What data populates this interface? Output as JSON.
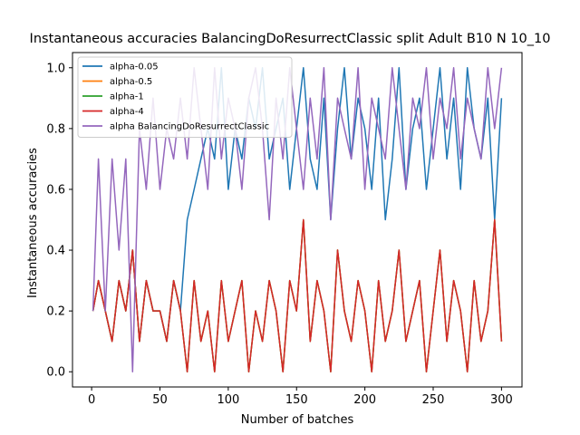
{
  "chart_data": {
    "type": "line",
    "title": "Instantaneous accuracies BalancingDoResurrectClassic split Adult B10 N 10_10",
    "xlabel": "Number of batches",
    "ylabel": "Instantaneous accuracies",
    "xlim": [
      -14,
      315
    ],
    "ylim": [
      -0.05,
      1.05
    ],
    "xticks": [
      0,
      50,
      100,
      150,
      200,
      250,
      300
    ],
    "yticks": [
      0.0,
      0.2,
      0.4,
      0.6,
      0.8,
      1.0
    ],
    "xtick_labels": [
      "0",
      "50",
      "100",
      "150",
      "200",
      "250",
      "300"
    ],
    "ytick_labels": [
      "0.0",
      "0.2",
      "0.4",
      "0.6",
      "0.8",
      "1.0"
    ],
    "legend_position": "upper-left",
    "series": [
      {
        "name": "alpha-0.05",
        "color": "#1f77b4",
        "x": [
          1,
          5,
          10,
          15,
          20,
          25,
          30,
          35,
          40,
          45,
          50,
          55,
          60,
          65,
          70,
          75,
          80,
          85,
          90,
          95,
          100,
          105,
          110,
          115,
          120,
          125,
          130,
          135,
          140,
          145,
          150,
          155,
          160,
          165,
          170,
          175,
          180,
          185,
          190,
          195,
          200,
          205,
          210,
          215,
          220,
          225,
          230,
          235,
          240,
          245,
          250,
          255,
          260,
          265,
          270,
          275,
          280,
          285,
          290,
          295,
          300
        ],
        "y": [
          0.2,
          0.3,
          0.2,
          0.1,
          0.3,
          0.2,
          0.4,
          0.1,
          0.3,
          0.2,
          0.2,
          0.1,
          0.3,
          0.2,
          0.5,
          0.6,
          0.7,
          0.8,
          0.7,
          1.0,
          0.6,
          0.8,
          0.7,
          0.9,
          0.8,
          1.0,
          0.7,
          0.8,
          0.9,
          0.6,
          0.8,
          1.0,
          0.7,
          0.6,
          0.9,
          0.5,
          0.8,
          1.0,
          0.7,
          0.9,
          0.8,
          0.6,
          0.9,
          0.5,
          0.7,
          1.0,
          0.6,
          0.8,
          0.9,
          0.6,
          0.8,
          1.0,
          0.7,
          0.9,
          0.6,
          1.0,
          0.8,
          0.7,
          0.9,
          0.5,
          0.9
        ]
      },
      {
        "name": "alpha-0.5",
        "color": "#ff7f0e",
        "x": [
          1,
          5,
          10,
          15,
          20,
          25,
          30,
          35,
          40,
          45,
          50,
          55,
          60,
          65,
          70,
          75,
          80,
          85,
          90,
          95,
          100,
          105,
          110,
          115,
          120,
          125,
          130,
          135,
          140,
          145,
          150,
          155,
          160,
          165,
          170,
          175,
          180,
          185,
          190,
          195,
          200,
          205,
          210,
          215,
          220,
          225,
          230,
          235,
          240,
          245,
          250,
          255,
          260,
          265,
          270,
          275,
          280,
          285,
          290,
          295,
          300
        ],
        "y": [
          0.2,
          0.3,
          0.2,
          0.1,
          0.3,
          0.2,
          0.4,
          0.1,
          0.3,
          0.2,
          0.2,
          0.1,
          0.3,
          0.2,
          0.0,
          0.3,
          0.1,
          0.2,
          0.0,
          0.3,
          0.1,
          0.2,
          0.3,
          0.0,
          0.2,
          0.1,
          0.3,
          0.2,
          0.0,
          0.3,
          0.2,
          0.5,
          0.1,
          0.3,
          0.2,
          0.0,
          0.4,
          0.2,
          0.1,
          0.3,
          0.2,
          0.0,
          0.3,
          0.1,
          0.2,
          0.4,
          0.1,
          0.2,
          0.3,
          0.0,
          0.2,
          0.4,
          0.1,
          0.3,
          0.2,
          0.0,
          0.3,
          0.1,
          0.2,
          0.5,
          0.1
        ]
      },
      {
        "name": "alpha-1",
        "color": "#2ca02c",
        "x": [
          1,
          5,
          10,
          15,
          20,
          25,
          30,
          35,
          40,
          45,
          50,
          55,
          60,
          65,
          70,
          75,
          80,
          85,
          90,
          95,
          100,
          105,
          110,
          115,
          120,
          125,
          130,
          135,
          140,
          145,
          150,
          155,
          160,
          165,
          170,
          175,
          180,
          185,
          190,
          195,
          200,
          205,
          210,
          215,
          220,
          225,
          230,
          235,
          240,
          245,
          250,
          255,
          260,
          265,
          270,
          275,
          280,
          285,
          290,
          295,
          300
        ],
        "y": [
          0.2,
          0.3,
          0.2,
          0.1,
          0.3,
          0.2,
          0.4,
          0.1,
          0.3,
          0.2,
          0.2,
          0.1,
          0.3,
          0.2,
          0.0,
          0.3,
          0.1,
          0.2,
          0.0,
          0.3,
          0.1,
          0.2,
          0.3,
          0.0,
          0.2,
          0.1,
          0.3,
          0.2,
          0.0,
          0.3,
          0.2,
          0.5,
          0.1,
          0.3,
          0.2,
          0.0,
          0.4,
          0.2,
          0.1,
          0.3,
          0.2,
          0.0,
          0.3,
          0.1,
          0.2,
          0.4,
          0.1,
          0.2,
          0.3,
          0.0,
          0.2,
          0.4,
          0.1,
          0.3,
          0.2,
          0.0,
          0.3,
          0.1,
          0.2,
          0.5,
          0.1
        ]
      },
      {
        "name": "alpha-4",
        "color": "#d62728",
        "x": [
          1,
          5,
          10,
          15,
          20,
          25,
          30,
          35,
          40,
          45,
          50,
          55,
          60,
          65,
          70,
          75,
          80,
          85,
          90,
          95,
          100,
          105,
          110,
          115,
          120,
          125,
          130,
          135,
          140,
          145,
          150,
          155,
          160,
          165,
          170,
          175,
          180,
          185,
          190,
          195,
          200,
          205,
          210,
          215,
          220,
          225,
          230,
          235,
          240,
          245,
          250,
          255,
          260,
          265,
          270,
          275,
          280,
          285,
          290,
          295,
          300
        ],
        "y": [
          0.2,
          0.3,
          0.2,
          0.1,
          0.3,
          0.2,
          0.4,
          0.1,
          0.3,
          0.2,
          0.2,
          0.1,
          0.3,
          0.2,
          0.0,
          0.3,
          0.1,
          0.2,
          0.0,
          0.3,
          0.1,
          0.2,
          0.3,
          0.0,
          0.2,
          0.1,
          0.3,
          0.2,
          0.0,
          0.3,
          0.2,
          0.5,
          0.1,
          0.3,
          0.2,
          0.0,
          0.4,
          0.2,
          0.1,
          0.3,
          0.2,
          0.0,
          0.3,
          0.1,
          0.2,
          0.4,
          0.1,
          0.2,
          0.3,
          0.0,
          0.2,
          0.4,
          0.1,
          0.3,
          0.2,
          0.0,
          0.3,
          0.1,
          0.2,
          0.5,
          0.1
        ]
      },
      {
        "name": "alpha BalancingDoResurrectClassic",
        "color": "#9467bd",
        "x": [
          1,
          5,
          10,
          15,
          20,
          25,
          30,
          35,
          40,
          45,
          50,
          55,
          60,
          65,
          70,
          75,
          80,
          85,
          90,
          95,
          100,
          105,
          110,
          115,
          120,
          125,
          130,
          135,
          140,
          145,
          150,
          155,
          160,
          165,
          170,
          175,
          180,
          185,
          190,
          195,
          200,
          205,
          210,
          215,
          220,
          225,
          230,
          235,
          240,
          245,
          250,
          255,
          260,
          265,
          270,
          275,
          280,
          285,
          290,
          295,
          300
        ],
        "y": [
          0.2,
          0.7,
          0.2,
          0.7,
          0.4,
          0.7,
          0.0,
          0.8,
          0.6,
          0.9,
          0.6,
          0.8,
          0.7,
          0.9,
          0.7,
          1.0,
          0.8,
          0.6,
          1.0,
          0.7,
          0.9,
          0.8,
          0.6,
          0.9,
          1.0,
          0.8,
          0.5,
          0.9,
          0.7,
          1.0,
          0.8,
          0.6,
          0.9,
          0.7,
          1.0,
          0.5,
          0.9,
          0.8,
          0.7,
          1.0,
          0.6,
          0.9,
          0.8,
          0.7,
          1.0,
          0.8,
          0.6,
          0.9,
          0.8,
          1.0,
          0.7,
          0.9,
          0.8,
          1.0,
          0.7,
          0.9,
          0.8,
          0.7,
          1.0,
          0.8,
          1.0
        ]
      }
    ]
  }
}
